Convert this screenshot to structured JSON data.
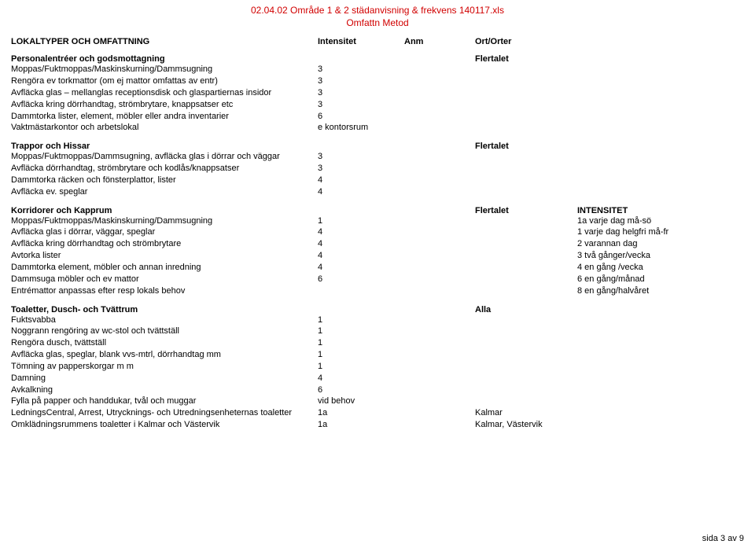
{
  "title": {
    "line1": "02.04.02 Område 1 & 2 städanvisning & frekvens 140117.xls",
    "line2": "Omfattn Metod",
    "color": "#d10000"
  },
  "header": {
    "col_desc": "LOKALTYPER OCH OMFATTNING",
    "col_int": "Intensitet",
    "col_anm": "Anm",
    "col_ort": "Ort/Orter"
  },
  "sections": [
    {
      "title": "Personalentréer och godsmottagning",
      "ort": "Flertalet",
      "rows": [
        {
          "desc": "Moppas/Fuktmoppas/Maskinskurning/Dammsugning",
          "int": "3"
        },
        {
          "desc": "Rengöra ev torkmattor (om ej mattor omfattas av entr)",
          "int": "3"
        },
        {
          "desc": "Avfläcka glas – mellanglas receptionsdisk och glaspartiernas insidor",
          "int": "3"
        },
        {
          "desc": "Avfläcka kring dörrhandtag, strömbrytare, knappsatser etc",
          "int": "3"
        },
        {
          "desc": "Dammtorka lister, element, möbler eller andra inventarier",
          "int": "6"
        },
        {
          "desc": "Vaktmästarkontor och arbetslokal",
          "int": "e kontorsrum"
        }
      ]
    },
    {
      "title": "Trappor och Hissar",
      "ort": "Flertalet",
      "rows": [
        {
          "desc": "Moppas/Fuktmoppas/Dammsugning, avfläcka glas i dörrar och väggar",
          "int": "3"
        },
        {
          "desc": "Avfläcka dörrhandtag, strömbrytare och kodlås/knappsatser",
          "int": "3"
        },
        {
          "desc": "Dammtorka räcken och fönsterplattor, lister",
          "int": "4"
        },
        {
          "desc": "Avfläcka ev. speglar",
          "int": "4"
        }
      ]
    },
    {
      "title": "Korridorer och Kapprum",
      "ort": "Flertalet",
      "note_header": "INTENSITET",
      "rows": [
        {
          "desc": "Moppas/Fuktmoppas/Maskinskurning/Dammsugning",
          "int": "1",
          "note": "1a varje dag må-sö"
        },
        {
          "desc": "Avfläcka glas i dörrar, väggar, speglar",
          "int": "4",
          "note": "1 varje dag helgfri må-fr"
        },
        {
          "desc": "Avfläcka kring dörrhandtag och strömbrytare",
          "int": "4",
          "note": "2 varannan dag"
        },
        {
          "desc": "Avtorka lister",
          "int": "4",
          "note": "3 två gånger/vecka"
        },
        {
          "desc": "Dammtorka element, möbler och annan inredning",
          "int": "4",
          "note": "4 en gång /vecka"
        },
        {
          "desc": "Dammsuga möbler och ev mattor",
          "int": "6",
          "note": "6 en gång/månad"
        },
        {
          "desc": "Entrémattor anpassas efter resp lokals behov",
          "int": "",
          "note": "8 en gång/halvåret"
        }
      ]
    },
    {
      "title": "Toaletter, Dusch- och Tvättrum",
      "ort": "Alla",
      "rows": [
        {
          "desc": "Fuktsvabba",
          "int": "1"
        },
        {
          "desc": "Noggrann rengöring av wc-stol och tvättställ",
          "int": "1"
        },
        {
          "desc": "Rengöra dusch, tvättställ",
          "int": "1"
        },
        {
          "desc": "Avfläcka glas, speglar, blank vvs-mtrl, dörrhandtag mm",
          "int": "1"
        },
        {
          "desc": "Tömning av papperskorgar m m",
          "int": "1"
        },
        {
          "desc": "Damning",
          "int": "4"
        },
        {
          "desc": "Avkalkning",
          "int": "6"
        },
        {
          "desc": "Fylla på papper och handdukar, tvål och muggar",
          "int": "vid behov"
        },
        {
          "desc": "LedningsCentral, Arrest, Utrycknings- och Utredningsenheternas toaletter",
          "int": "1a",
          "ort": "Kalmar"
        },
        {
          "desc": "Omklädningsrummens toaletter i Kalmar och Västervik",
          "int": "1a",
          "ort": "Kalmar, Västervik"
        }
      ]
    }
  ],
  "footer": "sida 3 av 9"
}
